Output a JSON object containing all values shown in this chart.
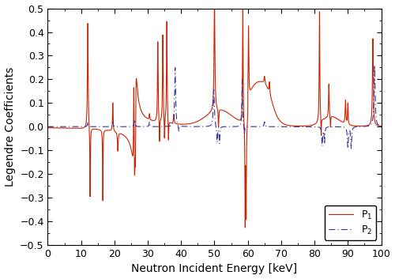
{
  "title": "",
  "xlabel": "Neutron Incident Energy [keV]",
  "ylabel": "Legendre Coefficients",
  "xlim": [
    0,
    100
  ],
  "ylim": [
    -0.5,
    0.5
  ],
  "xticks": [
    0,
    10,
    20,
    30,
    40,
    50,
    60,
    70,
    80,
    90,
    100
  ],
  "yticks": [
    -0.5,
    -0.4,
    -0.3,
    -0.2,
    -0.1,
    0.0,
    0.1,
    0.2,
    0.3,
    0.4,
    0.5
  ],
  "p1_color": "#cc2200",
  "p2_color": "#333399",
  "legend_p1": "P$_1$",
  "legend_p2": "P$_2$",
  "background": "#ffffff"
}
